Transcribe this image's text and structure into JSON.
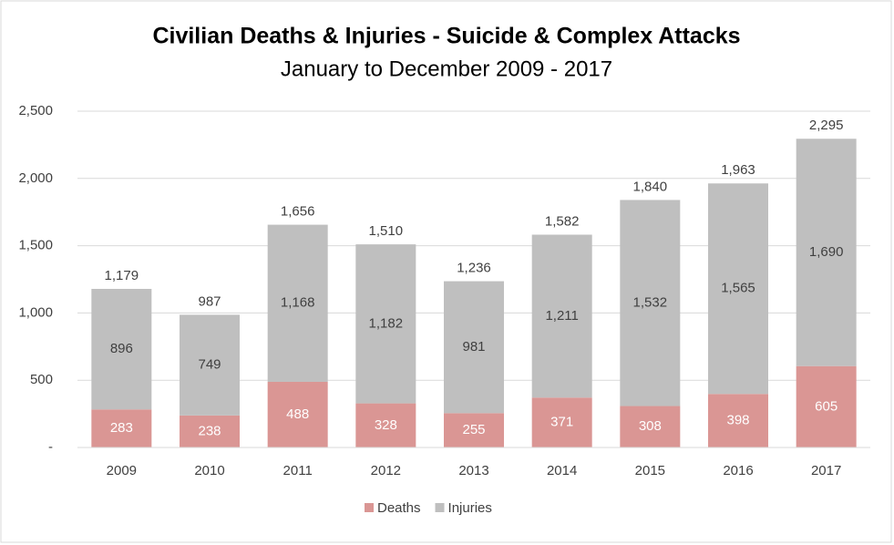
{
  "chart_data": {
    "type": "stacked-bar",
    "title": "Civilian Deaths & Injuries - Suicide & Complex Attacks",
    "subtitle": "January to December 2009 - 2017",
    "categories": [
      "2009",
      "2010",
      "2011",
      "2012",
      "2013",
      "2014",
      "2015",
      "2016",
      "2017"
    ],
    "series": [
      {
        "name": "Deaths",
        "color": "#da9694",
        "values": [
          283,
          238,
          488,
          328,
          255,
          371,
          308,
          398,
          605
        ]
      },
      {
        "name": "Injuries",
        "color": "#bfbfbf",
        "values": [
          896,
          749,
          1168,
          1182,
          981,
          1211,
          1532,
          1565,
          1690
        ],
        "value_labels": [
          "896",
          "749",
          "1,168",
          "1,182",
          "981",
          "1,211",
          "1,532",
          "1,565",
          "1,690"
        ]
      }
    ],
    "totals": {
      "values": [
        1179,
        987,
        1656,
        1510,
        1236,
        1582,
        1840,
        1963,
        2295
      ],
      "value_labels": [
        "1,179",
        "987",
        "1,656",
        "1,510",
        "1,236",
        "1,582",
        "1,840",
        "1,963",
        "2,295"
      ]
    },
    "ylim": [
      0,
      2500
    ],
    "yticks": [
      {
        "value": 0,
        "label": "-"
      },
      500,
      {
        "value": 1000,
        "label": "1,000"
      },
      {
        "value": 1500,
        "label": "1,500"
      },
      {
        "value": 2000,
        "label": "2,000"
      },
      {
        "value": 2500,
        "label": "2,500"
      }
    ],
    "grid": true,
    "legend": "bottom"
  }
}
